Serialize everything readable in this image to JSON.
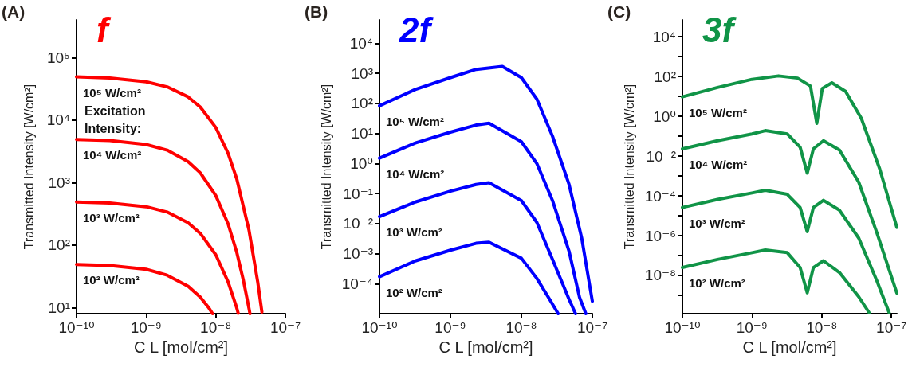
{
  "chart_data": [
    {
      "type": "line",
      "title": "f",
      "xlabel": "C L [mol/cm²]",
      "ylabel": "Transmitted Intensity [W/cm²]",
      "log": "xy",
      "line_style": "solid",
      "marker": "none",
      "annotations": [
        "(A)",
        {
          "text": "Excitation Intensity:",
          "x": 1e-10,
          "y": 49000
        }
      ],
      "xlim": [
        1e-10,
        1e-07
      ],
      "xticks": [
        {
          "value": 1e-10,
          "label": "10⁻¹⁰"
        },
        {
          "value": 1e-09,
          "label": "10⁻⁹"
        },
        {
          "value": 1e-08,
          "label": "10⁻⁸"
        },
        {
          "value": 1e-07,
          "label": "10⁻⁷"
        }
      ],
      "ylim": [
        8,
        400000
      ],
      "yticks": [
        {
          "value": 10,
          "label": "10¹"
        },
        {
          "value": 100,
          "label": "10²"
        },
        {
          "value": 1000,
          "label": "10³"
        },
        {
          "value": 10000,
          "label": "10⁴"
        },
        {
          "value": 100000,
          "label": "10⁵"
        }
      ],
      "series": [
        {
          "name": "10⁵ W/cm²",
          "color": "#ff0000",
          "x": [
            1e-10,
            3e-10,
            1e-09,
            2e-09,
            4e-09,
            6e-09,
            1e-08,
            1.5e-08,
            2e-08,
            3e-08,
            4e-08,
            4.6e-08
          ],
          "values": [
            49000,
            47000,
            41000,
            34000,
            23500,
            16100,
            7600,
            2950,
            1150,
            174,
            26,
            8.5
          ]
        },
        {
          "name": "10⁴ W/cm²",
          "color": "#ff0000",
          "x": [
            1e-10,
            3e-10,
            1e-09,
            2e-09,
            4e-09,
            6e-09,
            1e-08,
            1.5e-08,
            2e-08,
            2.5e-08,
            3e-08,
            3.1e-08
          ],
          "values": [
            4900,
            4700,
            4060,
            3300,
            2170,
            1430,
            620,
            220,
            77,
            27,
            9.7,
            8
          ]
        },
        {
          "name": "10³ W/cm²",
          "color": "#ff0000",
          "x": [
            1e-10,
            3e-10,
            1e-09,
            2e-09,
            4e-09,
            6e-09,
            1e-08,
            1.5e-08,
            2e-08,
            2.1e-08
          ],
          "values": [
            490,
            471,
            411,
            338,
            228,
            154,
            70,
            26,
            9.9,
            8.1
          ]
        },
        {
          "name": "10² W/cm²",
          "color": "#ff0000",
          "x": [
            1e-10,
            3e-10,
            1e-09,
            2e-09,
            4e-09,
            6e-09,
            8e-09,
            9e-09
          ],
          "values": [
            49,
            47,
            41,
            33,
            22,
            14.7,
            9.8,
            8
          ]
        }
      ]
    },
    {
      "type": "line",
      "title": "2f",
      "xlabel": "C L [mol/cm²]",
      "ylabel": "Transmitted Intensity [W/cm²]",
      "log": "xy",
      "line_style": "solid",
      "marker": "none",
      "annotations": [
        "(B)"
      ],
      "xlim": [
        1e-10,
        1e-07
      ],
      "xticks": [
        {
          "value": 1e-10,
          "label": "10⁻¹⁰"
        },
        {
          "value": 1e-09,
          "label": "10⁻⁹"
        },
        {
          "value": 1e-08,
          "label": "10⁻⁸"
        },
        {
          "value": 1e-07,
          "label": "10⁻⁷"
        }
      ],
      "ylim": [
        1e-05,
        60000
      ],
      "yticks": [
        {
          "value": 0.0001,
          "label": "10⁻⁴"
        },
        {
          "value": 0.001,
          "label": "10⁻³"
        },
        {
          "value": 0.01,
          "label": "10⁻²"
        },
        {
          "value": 0.1,
          "label": "10⁻¹"
        },
        {
          "value": 1,
          "label": "10⁰"
        },
        {
          "value": 10,
          "label": "10¹"
        },
        {
          "value": 100,
          "label": "10²"
        },
        {
          "value": 1000,
          "label": "10³"
        },
        {
          "value": 10000,
          "label": "10⁴"
        }
      ],
      "series": [
        {
          "name": "10⁵ W/cm²",
          "color": "#0000ff",
          "x": [
            1e-10,
            3.2e-10,
            1e-09,
            2.3e-09,
            5.4e-09,
            1e-08,
            1.65e-08,
            2.75e-08,
            4.7e-08,
            7.1e-08,
            1e-07
          ],
          "values": [
            83,
            290,
            720,
            1350,
            1700,
            720,
            140,
            8,
            0.2,
            0.0032,
            2.6e-05
          ]
        },
        {
          "name": "10⁴ W/cm²",
          "color": "#0000ff",
          "x": [
            1e-10,
            3.2e-10,
            1e-09,
            2.3e-09,
            3.5e-09,
            1e-08,
            1.65e-08,
            2.75e-08,
            4.7e-08,
            6.6e-08,
            8.1e-08
          ],
          "values": [
            1.5,
            4.8,
            11,
            19,
            22,
            5.3,
            1,
            0.058,
            0.0012,
            3.5e-05,
            1e-05
          ]
        },
        {
          "name": "10³ W/cm²",
          "color": "#0000ff",
          "x": [
            1e-10,
            3.2e-10,
            1e-09,
            2.3e-09,
            3.5e-09,
            1e-08,
            1.65e-08,
            2.75e-08,
            4.7e-08,
            5.8e-08
          ],
          "values": [
            0.017,
            0.052,
            0.12,
            0.2,
            0.23,
            0.058,
            0.011,
            0.00063,
            3e-05,
            1e-05
          ]
        },
        {
          "name": "10² W/cm²",
          "color": "#0000ff",
          "x": [
            1e-10,
            3.2e-10,
            1e-09,
            2.3e-09,
            3.5e-09,
            1e-08,
            1.65e-08,
            2.5e-08,
            3.3e-08
          ],
          "values": [
            0.00017,
            0.00057,
            0.0013,
            0.0022,
            0.0024,
            0.0007,
            0.00015,
            3e-05,
            1e-05
          ]
        }
      ]
    },
    {
      "type": "line",
      "title": "3f",
      "xlabel": "C L [mol/cm²]",
      "ylabel": "Transmitted Intensity [W/cm²]",
      "log": "xy",
      "line_style": "solid",
      "marker": "none",
      "annotations": [
        "(C)"
      ],
      "xlim": [
        1e-10,
        1.2e-07
      ],
      "xticks": [
        {
          "value": 1e-10,
          "label": "10⁻¹⁰"
        },
        {
          "value": 1e-09,
          "label": "10⁻⁹"
        },
        {
          "value": 1e-08,
          "label": "10⁻⁸"
        },
        {
          "value": 1e-07,
          "label": "10⁻⁷"
        }
      ],
      "ylim": [
        1.2e-10,
        70000
      ],
      "yticks": [
        {
          "value": 1e-09,
          "label": null
        },
        {
          "value": 1e-08,
          "label": "10⁻⁸"
        },
        {
          "value": 1e-07,
          "label": null
        },
        {
          "value": 1e-06,
          "label": "10⁻⁶"
        },
        {
          "value": 1e-05,
          "label": null
        },
        {
          "value": 0.0001,
          "label": "10⁻⁴"
        },
        {
          "value": 0.001,
          "label": null
        },
        {
          "value": 0.01,
          "label": "10⁻²"
        },
        {
          "value": 0.1,
          "label": null
        },
        {
          "value": 1,
          "label": "10⁰"
        },
        {
          "value": 10,
          "label": null
        },
        {
          "value": 100,
          "label": "10²"
        },
        {
          "value": 1000,
          "label": null
        },
        {
          "value": 10000,
          "label": "10⁴"
        }
      ],
      "series": [
        {
          "name": "10⁵ W/cm²",
          "color": "#109447",
          "x": [
            1e-10,
            3.2e-10,
            1e-09,
            2.4e-09,
            4.5e-09,
            6.9e-09,
            8.5e-09,
            1.02e-08,
            1.4e-08,
            2.2e-08,
            3.7e-08,
            6.8e-08,
            1.2e-07
          ],
          "values": [
            9.5,
            28,
            72,
            107,
            83,
            33,
            0.44,
            25,
            48,
            18,
            0.8,
            0.0023,
            2.6e-06
          ]
        },
        {
          "name": "10⁴ W/cm²",
          "color": "#109447",
          "x": [
            1e-10,
            3.2e-10,
            1e-09,
            1.55e-09,
            3.2e-09,
            4.9e-09,
            6.2e-09,
            7.6e-09,
            1.06e-08,
            1.8e-08,
            3.4e-08,
            6.2e-08,
            1.2e-07
          ],
          "values": [
            0.023,
            0.059,
            0.13,
            0.19,
            0.13,
            0.028,
            0.0014,
            0.023,
            0.059,
            0.02,
            0.00049,
            1.4e-06,
            1.3e-09
          ]
        },
        {
          "name": "10³ W/cm²",
          "color": "#109447",
          "x": [
            1e-10,
            3.2e-10,
            1e-09,
            1.55e-09,
            3.2e-09,
            4.9e-09,
            6.2e-09,
            7.6e-09,
            1.06e-08,
            1.8e-08,
            3.4e-08,
            6.2e-08,
            9.3e-08
          ],
          "values": [
            2.6e-05,
            6.6e-05,
            0.00014,
            0.00019,
            0.00012,
            2.6e-05,
            1.6e-06,
            2.6e-05,
            6e-05,
            1.9e-05,
            7.6e-07,
            5.4e-09,
            1.35e-10
          ]
        },
        {
          "name": "10² W/cm²",
          "color": "#109447",
          "x": [
            1e-10,
            3.2e-10,
            1e-09,
            1.55e-09,
            3.2e-09,
            4.9e-09,
            6.2e-09,
            7.6e-09,
            1.06e-08,
            1.8e-08,
            3.4e-08,
            4.8e-08
          ],
          "values": [
            2.5e-08,
            6.4e-08,
            1.4e-07,
            1.9e-07,
            1.4e-07,
            2.5e-08,
            1.35e-09,
            2.5e-08,
            5.5e-08,
            1.4e-08,
            8.5e-10,
            1.35e-10
          ]
        }
      ]
    }
  ]
}
